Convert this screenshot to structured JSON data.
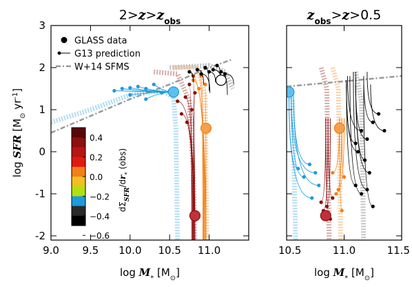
{
  "chart_data": [
    {
      "type": "line",
      "panel": "left",
      "title_parts": [
        "2>",
        "z",
        ">",
        "z",
        "obs"
      ],
      "xlabel_parts": [
        "log ",
        "M",
        "*",
        " [M",
        "⊙",
        "]"
      ],
      "ylabel_parts": [
        "log ",
        "SFR",
        " [M",
        "⊙",
        " yr",
        "-1",
        "]"
      ],
      "xlim": [
        9.0,
        11.5
      ],
      "ylim": [
        -2.1,
        3.0
      ],
      "xticks": [
        "9.0",
        "9.5",
        "10.0",
        "10.5",
        "11.0"
      ],
      "xtick_values": [
        9.0,
        9.5,
        10.0,
        10.5,
        11.0
      ],
      "yticks": [
        "-2",
        "-1",
        "0",
        "1",
        "2",
        "3"
      ],
      "ytick_values": [
        -2,
        -1,
        0,
        1,
        2,
        3
      ],
      "legend": {
        "placement": "top-left",
        "entries": [
          {
            "label": "GLASS data",
            "style": "filled-circle"
          },
          {
            "label": "G13 prediction",
            "style": "line-with-dots"
          },
          {
            "label": "W+14 SFMS",
            "style": "dash-dot"
          }
        ]
      },
      "sfms": [
        [
          9.0,
          0.45
        ],
        [
          10.0,
          1.25
        ],
        [
          10.5,
          1.6
        ],
        [
          11.0,
          2.0
        ],
        [
          11.3,
          2.2
        ]
      ],
      "series": [
        {
          "group": "blue",
          "color": "#1e9bdc",
          "points": [
            [
              9.8,
              1.45
            ],
            [
              9.9,
              1.5
            ],
            [
              10.0,
              1.52
            ],
            [
              10.1,
              1.55
            ],
            [
              10.2,
              1.5
            ],
            [
              10.3,
              1.6
            ],
            [
              10.4,
              1.4
            ],
            [
              10.5,
              1.45
            ],
            [
              10.0,
              1.35
            ],
            [
              10.2,
              1.25
            ]
          ],
          "endpoint": [
            10.55,
            1.42
          ]
        },
        {
          "group": "darkred",
          "color": "#8b1010",
          "points": [
            [
              10.6,
              1.2
            ],
            [
              10.65,
              0.9
            ],
            [
              10.7,
              1.3
            ],
            [
              10.72,
              0.7
            ],
            [
              10.75,
              1.6
            ],
            [
              10.78,
              1.0
            ],
            [
              10.8,
              1.8
            ],
            [
              10.82,
              1.4
            ]
          ],
          "endpoint": [
            10.82,
            -1.52
          ]
        },
        {
          "group": "orange",
          "color": "#f07f12",
          "points": [
            [
              10.75,
              1.9
            ],
            [
              10.8,
              1.7
            ],
            [
              10.85,
              1.95
            ],
            [
              10.87,
              1.5
            ],
            [
              10.9,
              1.8
            ],
            [
              10.95,
              1.6
            ]
          ],
          "endpoint": [
            10.96,
            0.56
          ]
        },
        {
          "group": "black",
          "color": "#000000",
          "points": [
            [
              10.75,
              1.9
            ],
            [
              10.85,
              1.95
            ],
            [
              10.9,
              1.85
            ],
            [
              10.95,
              2.0
            ],
            [
              11.0,
              1.9
            ],
            [
              11.05,
              1.95
            ],
            [
              11.1,
              2.05
            ],
            [
              11.15,
              1.9
            ],
            [
              11.2,
              1.85
            ]
          ],
          "endpoint": [
            11.15,
            1.7
          ]
        }
      ],
      "colorbar": {
        "label_parts": [
          "d",
          "Σ",
          "SFR",
          "/d",
          "r",
          "*",
          " (obs)"
        ],
        "tick_labels": [
          "0.4",
          "0.2",
          "0.0",
          "−0.2",
          "−0.4",
          "−0.6"
        ],
        "colors": [
          "#5a0606",
          "#8b1010",
          "#b71414",
          "#e01a10",
          "#f27f1a",
          "#f0c020",
          "#b0e010",
          "#1e9bdc",
          "#2a2a2a",
          "#000000"
        ]
      }
    },
    {
      "type": "line",
      "panel": "right",
      "title_parts": [
        "z",
        "obs",
        ">",
        "z",
        ">0.5"
      ],
      "xlabel_parts": [
        "log ",
        "M",
        "*",
        " [M",
        "⊙",
        "]"
      ],
      "xlim": [
        10.5,
        11.5
      ],
      "ylim": [
        -2.1,
        3.0
      ],
      "xticks": [
        "10.5",
        "11.0",
        "11.5"
      ],
      "xtick_values": [
        10.5,
        11.0,
        11.5
      ],
      "series": [
        {
          "group": "blue",
          "color": "#1e9bdc",
          "points": [
            [
              10.6,
              -0.4
            ],
            [
              10.65,
              -0.6
            ],
            [
              10.7,
              -0.3
            ],
            [
              10.72,
              -1.1
            ],
            [
              10.75,
              -0.5
            ],
            [
              10.78,
              -0.8
            ]
          ],
          "endpoint": [
            10.52,
            1.42
          ]
        },
        {
          "group": "darkred",
          "color": "#8b1010",
          "points": [
            [
              10.8,
              -1.2
            ],
            [
              10.82,
              -1.4
            ],
            [
              10.85,
              -1.3
            ],
            [
              10.88,
              -1.6
            ],
            [
              10.9,
              -1.1
            ]
          ],
          "endpoint": [
            10.84,
            -1.52
          ]
        },
        {
          "group": "orange",
          "color": "#f07f12",
          "points": [
            [
              10.9,
              -0.5
            ],
            [
              10.93,
              -1.0
            ],
            [
              10.95,
              -0.9
            ],
            [
              10.98,
              -1.4
            ],
            [
              11.0,
              -0.6
            ]
          ],
          "endpoint": [
            10.96,
            0.56
          ]
        },
        {
          "group": "black",
          "color": "#000000",
          "points": [
            [
              11.1,
              0.2
            ],
            [
              11.12,
              0.0
            ],
            [
              11.15,
              0.5
            ],
            [
              11.18,
              -0.2
            ],
            [
              11.2,
              0.3
            ],
            [
              11.22,
              -0.5
            ],
            [
              11.25,
              0.7
            ],
            [
              11.3,
              0.9
            ],
            [
              11.35,
              0.5
            ],
            [
              11.1,
              -0.8
            ],
            [
              11.15,
              -1.0
            ],
            [
              11.2,
              -0.9
            ],
            [
              11.25,
              -1.3
            ]
          ],
          "endpoint": null
        }
      ]
    }
  ]
}
